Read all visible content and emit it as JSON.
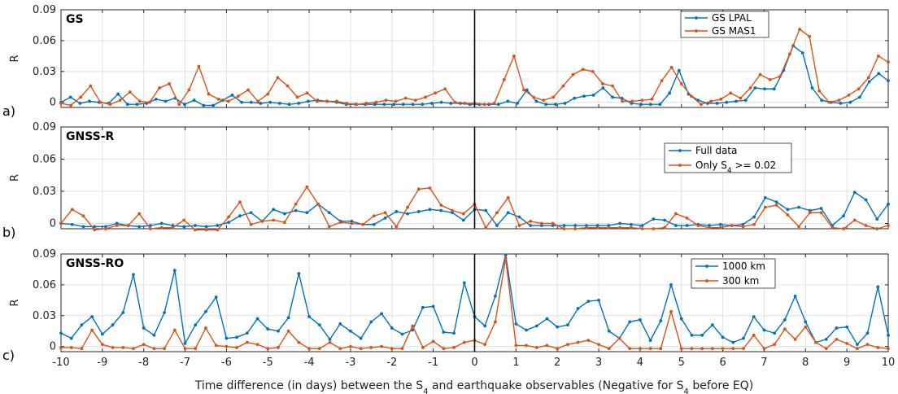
{
  "colors": {
    "blue": "#0072BD",
    "orange": "#D95319",
    "grid": "#dcdcdc",
    "axis": "#262626",
    "eq_line": "#000000"
  },
  "figure": {
    "xlabel_pre": "Time difference (in days) between the S",
    "xlabel_sub1": "4",
    "xlabel_mid": " and earthquake observables (Negative for S",
    "xlabel_sub2": "4",
    "xlabel_post": " before EQ)"
  },
  "chart_data": [
    {
      "type": "line",
      "title": "GS",
      "panel_label": "a)",
      "ylabel": "R",
      "xlim": [
        -10,
        10
      ],
      "ylim": [
        -0.005,
        0.09
      ],
      "yticks": [
        0,
        0.03,
        0.06,
        0.09
      ],
      "yticklabels": [
        "0",
        "0.03",
        "0.06",
        "0.09"
      ],
      "xticks": [
        -10,
        -9,
        -8,
        -7,
        -6,
        -5,
        -4,
        -3,
        -2,
        -1,
        0,
        1,
        2,
        3,
        4,
        5,
        6,
        7,
        8,
        9,
        10
      ],
      "xticklabels": [
        "-10",
        "-9",
        "-8",
        "-7",
        "-6",
        "-5",
        "-4",
        "-3",
        "-2",
        "-1",
        "0",
        "1",
        "2",
        "3",
        "4",
        "5",
        "6",
        "7",
        "8",
        "9",
        "10"
      ],
      "grid": true,
      "legend_position": "top-right",
      "series": [
        {
          "name": "GS LPAL",
          "name_sub": "",
          "name_post": "",
          "color": "#0072BD",
          "values": [
            0,
            0.005,
            -0.001,
            0.001,
            0,
            -0.001,
            0.008,
            -0.002,
            -0.002,
            -0.001,
            0.003,
            0.001,
            0.004,
            -0.002,
            0.002,
            -0.003,
            -0.003,
            0.002,
            0.007,
            0,
            0,
            -0.001,
            0,
            -0.001,
            -0.002,
            -0.001,
            0.001,
            0.002,
            0.001,
            0,
            -0.002,
            -0.002,
            -0.002,
            -0.002,
            -0.002,
            -0.002,
            -0.002,
            -0.002,
            -0.002,
            -0.001,
            0,
            -0.001,
            -0.001,
            -0.002,
            -0.002,
            -0.002,
            -0.002,
            0.001,
            -0.001,
            0.012,
            0.001,
            -0.002,
            -0.002,
            -0.001,
            0.004,
            0.006,
            0.007,
            0.014,
            0.005,
            0.004,
            -0.001,
            -0.002,
            -0.002,
            -0.002,
            0.009,
            0.031,
            0.008,
            0.002,
            -0.001,
            -0.001,
            0,
            0.001,
            0.002,
            0.014,
            0.013,
            0.013,
            0.031,
            0.055,
            0.048,
            0.014,
            0.002,
            0,
            -0.001,
            0,
            0.005,
            0.02,
            0.028,
            0.021
          ]
        },
        {
          "name": "GS MAS1",
          "name_sub": "",
          "name_post": "",
          "color": "#D95319",
          "values": [
            -0.001,
            -0.003,
            0.005,
            0.016,
            0,
            -0.002,
            0.002,
            0.01,
            0.001,
            0,
            0.014,
            0.018,
            -0.002,
            0.012,
            0.035,
            0.008,
            0.003,
            0.001,
            0.006,
            0.012,
            0.001,
            0.008,
            0.024,
            0.016,
            0.005,
            0.009,
            0.001,
            0.001,
            0.001,
            -0.001,
            -0.002,
            -0.001,
            0,
            0.002,
            0.001,
            0.004,
            0.002,
            0.005,
            0.009,
            0.013,
            0,
            -0.001,
            -0.001,
            -0.002,
            -0.001,
            0.022,
            0.045,
            0.012,
            0.005,
            0.002,
            0.005,
            0.016,
            0.027,
            0.032,
            0.03,
            0.018,
            0.016,
            0.001,
            0.001,
            0.002,
            0.003,
            0.021,
            0.034,
            0.018,
            0.006,
            -0.002,
            0.001,
            0.003,
            0.009,
            0.004,
            0.014,
            0.027,
            0.022,
            0.025,
            0.047,
            0.071,
            0.064,
            0.011,
            0,
            0.002,
            0.007,
            0.013,
            0.024,
            0.045,
            0.039
          ]
        }
      ]
    },
    {
      "type": "line",
      "title": "GNSS-R",
      "panel_label": "b)",
      "ylabel": "R",
      "xlim": [
        -10,
        10
      ],
      "ylim": [
        -0.005,
        0.09
      ],
      "yticks": [
        0,
        0.03,
        0.06,
        0.09
      ],
      "yticklabels": [
        "0",
        "0.03",
        "0.06",
        "0.09"
      ],
      "xticks": [
        -10,
        -9,
        -8,
        -7,
        -6,
        -5,
        -4,
        -3,
        -2,
        -1,
        0,
        1,
        2,
        3,
        4,
        5,
        6,
        7,
        8,
        9,
        10
      ],
      "xticklabels": [
        "-10",
        "-9",
        "-8",
        "-7",
        "-6",
        "-5",
        "-4",
        "-3",
        "-2",
        "-1",
        "0",
        "1",
        "2",
        "3",
        "4",
        "5",
        "6",
        "7",
        "8",
        "9",
        "10"
      ],
      "grid": true,
      "legend_position": "top-right",
      "series": [
        {
          "name": "Full data",
          "name_sub": "",
          "name_post": "",
          "color": "#0072BD",
          "values": [
            0,
            -0.001,
            -0.003,
            -0.003,
            -0.003,
            0,
            -0.002,
            -0.003,
            -0.002,
            0,
            -0.002,
            -0.003,
            -0.002,
            -0.003,
            -0.002,
            0.001,
            0.007,
            0.01,
            0.002,
            0.013,
            0.009,
            0.012,
            0.01,
            0.018,
            0.01,
            0.002,
            0.002,
            -0.001,
            -0.001,
            0.005,
            0.011,
            0.009,
            0.011,
            0.013,
            0.012,
            0.01,
            0.003,
            0.013,
            0.012,
            -0.002,
            0.01,
            0.006,
            -0.002,
            -0.002,
            -0.002,
            -0.002,
            -0.002,
            -0.002,
            -0.002,
            -0.002,
            0,
            -0.001,
            -0.002,
            0.004,
            0.003,
            -0.002,
            -0.002,
            -0.001,
            -0.002,
            -0.001,
            -0.002,
            -0.001,
            0.006,
            0.024,
            0.02,
            0.013,
            0.015,
            0.012,
            0.014,
            -0.002,
            0.007,
            0.029,
            0.022,
            0.004,
            0.018
          ]
        },
        {
          "name": "Only S",
          "name_sub": "4",
          "name_post": " >= 0.02",
          "color": "#D95319",
          "values": [
            0,
            0.013,
            0.007,
            -0.006,
            -0.005,
            -0.002,
            -0.002,
            0.009,
            -0.005,
            -0.004,
            -0.004,
            0.003,
            -0.006,
            -0.006,
            -0.006,
            0.006,
            0.02,
            -0.001,
            0.002,
            0.003,
            0.001,
            0.018,
            0.034,
            0.018,
            -0.003,
            0.001,
            0,
            -0.001,
            0.007,
            0.01,
            -0.003,
            0.015,
            0.032,
            0.033,
            0.017,
            0.012,
            0.009,
            0.018,
            -0.004,
            0.01,
            0.024,
            -0.002,
            0.002,
            0,
            0,
            -0.005,
            -0.005,
            -0.004,
            -0.004,
            -0.004,
            -0.004,
            -0.004,
            -0.005,
            -0.005,
            -0.004,
            0.009,
            0.005,
            -0.002,
            -0.004,
            -0.004,
            -0.002,
            -0.003,
            -0.001,
            0.015,
            0.017,
            0.008,
            -0.003,
            0.01,
            0.01,
            -0.004,
            -0.005,
            0.003,
            -0.002,
            -0.005,
            -0.002
          ]
        }
      ]
    },
    {
      "type": "line",
      "title": "GNSS-RO",
      "panel_label": "c)",
      "ylabel": "R",
      "xlim": [
        -10,
        10
      ],
      "ylim": [
        -0.005,
        0.09
      ],
      "yticks": [
        0,
        0.03,
        0.06,
        0.09
      ],
      "yticklabels": [
        "0",
        "0.03",
        "0.06",
        "0.09"
      ],
      "xticks": [
        -10,
        -9,
        -8,
        -7,
        -6,
        -5,
        -4,
        -3,
        -2,
        -1,
        0,
        1,
        2,
        3,
        4,
        5,
        6,
        7,
        8,
        9,
        10
      ],
      "xticklabels": [
        "-10",
        "-9",
        "-8",
        "-7",
        "-6",
        "-5",
        "-4",
        "-3",
        "-2",
        "-1",
        "0",
        "1",
        "2",
        "3",
        "4",
        "5",
        "6",
        "7",
        "8",
        "9",
        "10"
      ],
      "grid": true,
      "legend_position": "top-right",
      "series": [
        {
          "name": "1000 km",
          "name_sub": "",
          "name_post": "",
          "color": "#0072BD",
          "values": [
            0.013,
            0.008,
            0.021,
            0.029,
            0.012,
            0.021,
            0.033,
            0.07,
            0.018,
            0.011,
            0.033,
            0.074,
            0.003,
            0.021,
            0.034,
            0.048,
            0.008,
            0.009,
            0.013,
            0.027,
            0.017,
            0.015,
            0.028,
            0.071,
            0.029,
            0.021,
            0.007,
            0.022,
            0.015,
            0.008,
            0.024,
            0.032,
            0.018,
            0.012,
            0.016,
            0.038,
            0.039,
            0.014,
            0.013,
            0.062,
            0.029,
            0.02,
            0.049,
            0.089,
            0.022,
            0.016,
            0.02,
            0.027,
            0.019,
            0.021,
            0.037,
            0.044,
            0.045,
            0.015,
            0.008,
            0.024,
            0.026,
            0.006,
            0.025,
            0.06,
            0.027,
            0.011,
            0.011,
            0.021,
            0.009,
            0.004,
            0.008,
            0.029,
            0.016,
            0.013,
            0.026,
            0.049,
            0.024,
            0.004,
            0.007,
            0.018,
            0.019,
            0.002,
            0.013,
            0.058,
            0.011
          ]
        },
        {
          "name": "300 km",
          "name_sub": "",
          "name_post": "",
          "color": "#D95319",
          "values": [
            -0.001,
            -0.001,
            -0.002,
            0.016,
            0.002,
            -0.001,
            -0.001,
            -0.002,
            0.002,
            -0.002,
            -0.002,
            0.016,
            -0.002,
            -0.002,
            0.018,
            0.001,
            0,
            -0.001,
            0.004,
            0.002,
            -0.002,
            -0.001,
            0.015,
            0.004,
            -0.002,
            -0.002,
            0.004,
            -0.002,
            0,
            -0.002,
            -0.001,
            0,
            -0.002,
            -0.002,
            0.02,
            -0.001,
            0.005,
            -0.002,
            -0.001,
            0.004,
            0.006,
            0.002,
            0.024,
            0.086,
            0.001,
            0.001,
            -0.001,
            0.001,
            -0.002,
            0.002,
            0.004,
            0.006,
            0.002,
            -0.002,
            0.008,
            -0.002,
            -0.002,
            -0.002,
            -0.002,
            0.034,
            -0.002,
            -0.002,
            -0.002,
            -0.002,
            -0.002,
            -0.002,
            -0.002,
            0.011,
            -0.002,
            0.002,
            0.017,
            0.007,
            0.019,
            0.004,
            -0.002,
            0.007,
            0.003,
            -0.002,
            0.002,
            -0.001,
            -0.002
          ]
        }
      ]
    }
  ]
}
